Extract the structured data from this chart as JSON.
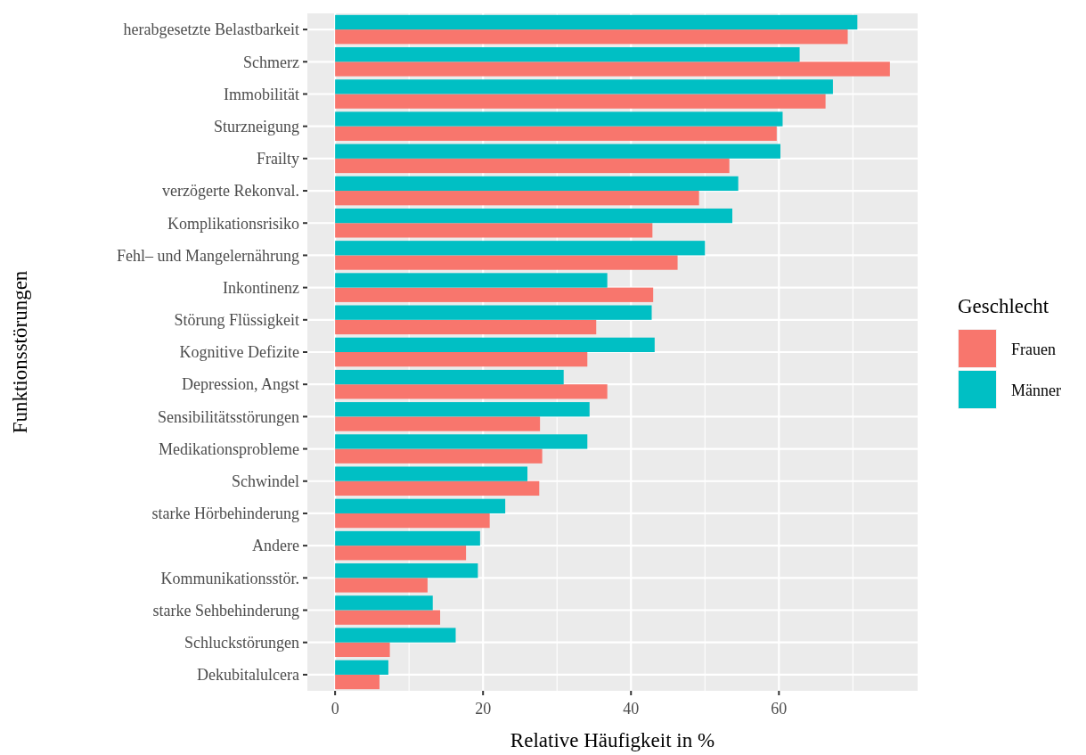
{
  "chart_data": {
    "type": "bar",
    "orientation": "horizontal",
    "xlabel": "Relative Häufigkeit in %",
    "ylabel": "Funktionsstörungen",
    "legend_title": "Geschlecht",
    "legend": "right",
    "grid": true,
    "categories": [
      "herabgesetzte Belastbarkeit",
      "Schmerz",
      "Immobilität",
      "Sturzneigung",
      "Frailty",
      "verzögerte Rekonval.",
      "Komplikationsrisiko",
      "Fehl– und Mangelernährung",
      "Inkontinenz",
      "Störung Flüssigkeit",
      "Kognitive Defizite",
      "Depression, Angst",
      "Sensibilitätsstörungen",
      "Medikationsprobleme",
      "Schwindel",
      "starke Hörbehinderung",
      "Andere",
      "Kommunikationsstör.",
      "starke Sehbehinderung",
      "Schluckstörungen",
      "Dekubitalulcera"
    ],
    "series": [
      {
        "name": "Frauen",
        "color": "#f8766d",
        "values": [
          69.3,
          75.0,
          66.3,
          59.7,
          53.3,
          49.2,
          42.9,
          46.3,
          43.0,
          35.3,
          34.1,
          36.8,
          27.7,
          28.0,
          27.6,
          20.9,
          17.7,
          12.5,
          14.2,
          7.4,
          6.0
        ]
      },
      {
        "name": "Männer",
        "color": "#00bfc4",
        "values": [
          70.6,
          62.8,
          67.3,
          60.5,
          60.2,
          54.5,
          53.7,
          50.0,
          36.8,
          42.8,
          43.2,
          30.9,
          34.4,
          34.1,
          26.0,
          23.0,
          19.6,
          19.3,
          13.2,
          16.3,
          7.2
        ]
      }
    ],
    "xlim": [
      -3.75,
      78.75
    ],
    "xticks": [
      0,
      20,
      40,
      60
    ]
  }
}
